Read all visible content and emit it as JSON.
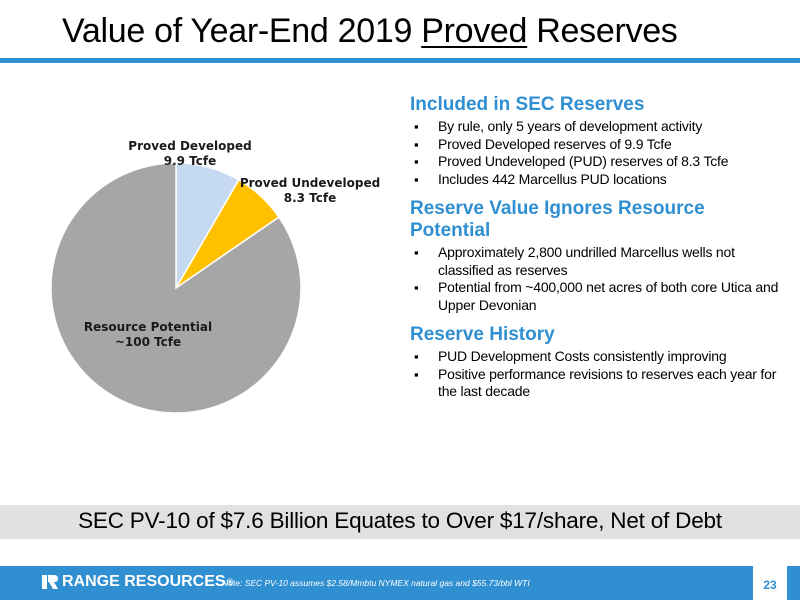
{
  "title": {
    "before": "Value of Year-End 2019 ",
    "underlined": "Proved",
    "after": " Reserves"
  },
  "accent_color": "#2f8fd1",
  "chart_data": {
    "type": "pie",
    "title": "",
    "series": [
      {
        "name": "Proved Developed",
        "value": 9.9,
        "value_label": "9.9 Tcfe",
        "color": "#c5d9f1"
      },
      {
        "name": "Proved Undeveloped",
        "value": 8.3,
        "value_label": "8.3 Tcfe",
        "color": "#ffc000"
      },
      {
        "name": "Resource Potential",
        "value": 100,
        "value_label": "~100 Tcfe",
        "color": "#a6a6a6"
      }
    ],
    "legend": "none"
  },
  "sections": [
    {
      "heading": "Included in SEC Reserves",
      "bullets": [
        "By rule, only 5 years of development activity",
        "Proved Developed reserves of 9.9 Tcfe",
        "Proved Undeveloped (PUD) reserves of 8.3 Tcfe",
        "Includes 442 Marcellus PUD locations"
      ]
    },
    {
      "heading": "Reserve Value Ignores Resource Potential",
      "bullets": [
        "Approximately 2,800 undrilled Marcellus wells not classified as reserves",
        "Potential from ~400,000 net acres of both core Utica and Upper Devonian"
      ]
    },
    {
      "heading": "Reserve History",
      "bullets": [
        "PUD Development Costs consistently improving",
        "Positive performance revisions to reserves each year for the last decade"
      ]
    }
  ],
  "banner": "SEC PV-10 of $7.6 Billion Equates to Over $17/share, Net of Debt",
  "footer": {
    "logo": "RANGE RESOURCES",
    "logo_mark": "®",
    "note": "Note: SEC PV-10 assumes $2.58/Mmbtu NYMEX natural gas and $55.73/bbl WTI",
    "page": "23"
  }
}
